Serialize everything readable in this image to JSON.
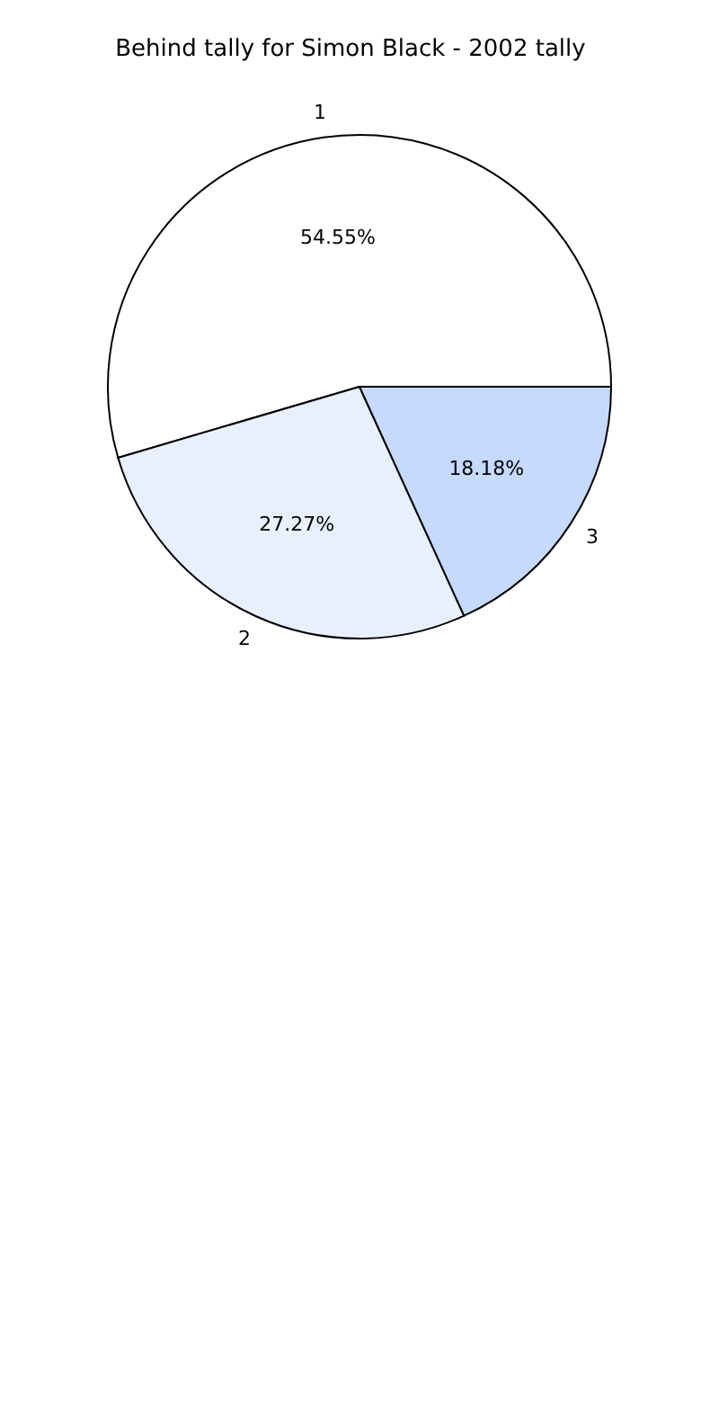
{
  "chart_data": {
    "type": "pie",
    "title": "Behind tally for Simon Black - 2002 tally",
    "categories": [
      "1",
      "2",
      "3"
    ],
    "values": [
      54.55,
      27.27,
      18.18
    ],
    "colors": [
      "#ffffff",
      "#e8f0ff",
      "#c6d9ff"
    ],
    "value_labels": [
      "54.55%",
      "27.27%",
      "18.18%"
    ],
    "legend": false
  }
}
